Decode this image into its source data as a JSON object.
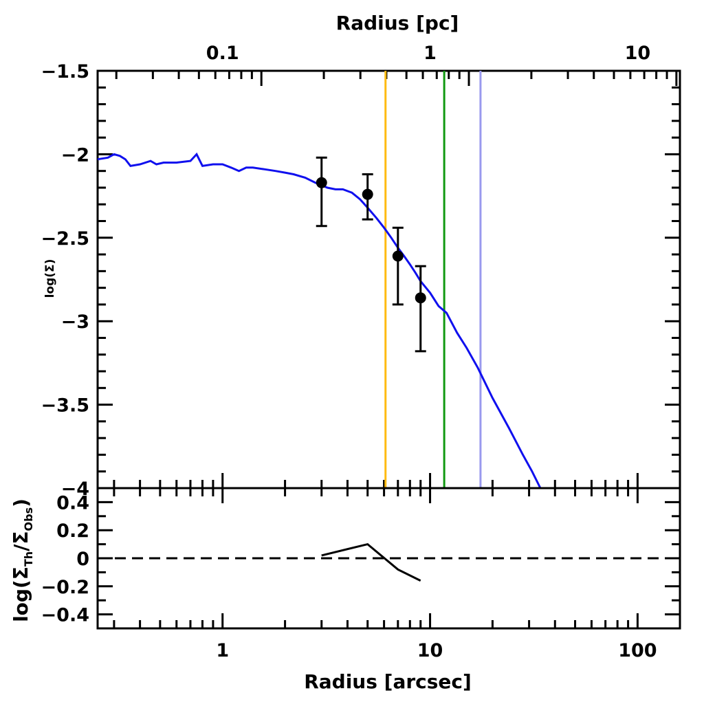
{
  "chart_data": [
    {
      "type": "line",
      "panel": "main",
      "xscale": "log",
      "xlim": [
        0.25,
        160
      ],
      "ylim": [
        -4,
        -1.5
      ],
      "xlabel_top": "Radius [pc]",
      "xticks_top": [
        {
          "value": 0.065,
          "label": "0.1"
        },
        {
          "value": 0.65,
          "label": "1"
        },
        {
          "value": 6.5,
          "label": "10"
        }
      ],
      "ylabel": "log(Σ)",
      "yticks": [
        {
          "value": -1.5,
          "label": "−1.5"
        },
        {
          "value": -2,
          "label": "−2"
        },
        {
          "value": -2.5,
          "label": "−2.5"
        },
        {
          "value": -3,
          "label": "−3"
        },
        {
          "value": -3.5,
          "label": "−3.5"
        },
        {
          "value": -4,
          "label": "−4"
        }
      ],
      "series": [
        {
          "name": "model-profile",
          "color": "#1010ee",
          "x": [
            0.25,
            0.28,
            0.3,
            0.32,
            0.34,
            0.36,
            0.4,
            0.45,
            0.48,
            0.52,
            0.6,
            0.7,
            0.75,
            0.8,
            0.9,
            1.0,
            1.1,
            1.2,
            1.3,
            1.4,
            1.6,
            1.8,
            2.0,
            2.2,
            2.5,
            2.8,
            3.2,
            3.5,
            3.8,
            4.2,
            4.6,
            5.0,
            5.5,
            6.0,
            6.5,
            7.0,
            7.5,
            8.0,
            8.5,
            9.0,
            10.0,
            11.0,
            12.0,
            13.5,
            15.0,
            17.0,
            20.0,
            24.0,
            28.0,
            31.0,
            34.0
          ],
          "y": [
            -2.03,
            -2.02,
            -2.0,
            -2.01,
            -2.03,
            -2.07,
            -2.06,
            -2.04,
            -2.06,
            -2.05,
            -2.05,
            -2.04,
            -2.0,
            -2.07,
            -2.06,
            -2.06,
            -2.08,
            -2.1,
            -2.08,
            -2.08,
            -2.09,
            -2.1,
            -2.11,
            -2.12,
            -2.14,
            -2.17,
            -2.2,
            -2.21,
            -2.21,
            -2.23,
            -2.27,
            -2.32,
            -2.38,
            -2.44,
            -2.5,
            -2.56,
            -2.61,
            -2.66,
            -2.71,
            -2.76,
            -2.83,
            -2.91,
            -2.95,
            -3.07,
            -3.16,
            -3.28,
            -3.46,
            -3.64,
            -3.8,
            -3.9,
            -4.0
          ]
        }
      ],
      "points": [
        {
          "x": 3.0,
          "y": -2.17,
          "ylow": -2.43,
          "yhigh": -2.02
        },
        {
          "x": 5.0,
          "y": -2.24,
          "ylow": -2.39,
          "yhigh": -2.12
        },
        {
          "x": 7.0,
          "y": -2.61,
          "ylow": -2.9,
          "yhigh": -2.44
        },
        {
          "x": 9.0,
          "y": -2.86,
          "ylow": -3.18,
          "yhigh": -2.67
        }
      ],
      "vlines": [
        {
          "x": 6.1,
          "color": "#ffbb11"
        },
        {
          "x": 11.7,
          "color": "#119911"
        },
        {
          "x": 17.5,
          "color": "#9999ee"
        }
      ]
    },
    {
      "type": "line",
      "panel": "residual",
      "xscale": "log",
      "xlim": [
        0.25,
        160
      ],
      "ylim": [
        -0.5,
        0.5
      ],
      "xlabel": "Radius [arcsec]",
      "xticks": [
        {
          "value": 1,
          "label": "1"
        },
        {
          "value": 10,
          "label": "10"
        },
        {
          "value": 100,
          "label": "100"
        }
      ],
      "ylabel_parts": [
        "log(Σ",
        "Th",
        "/Σ",
        "Obs",
        ")"
      ],
      "yticks": [
        {
          "value": 0.4,
          "label": "0.4"
        },
        {
          "value": 0.2,
          "label": "0.2"
        },
        {
          "value": 0,
          "label": "0"
        },
        {
          "value": -0.2,
          "label": "−0.2"
        },
        {
          "value": -0.4,
          "label": "−0.4"
        }
      ],
      "series": [
        {
          "name": "residual",
          "color": "#000000",
          "x": [
            3.0,
            5.0,
            7.0,
            9.0
          ],
          "y": [
            0.02,
            0.1,
            -0.08,
            -0.16
          ]
        }
      ],
      "hline": {
        "y": 0,
        "style": "dashed"
      }
    }
  ]
}
